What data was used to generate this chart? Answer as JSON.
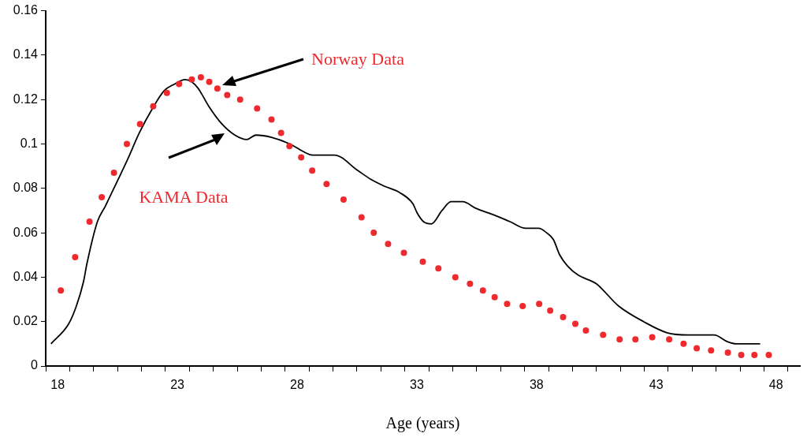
{
  "chart_data": {
    "type": "line",
    "xlabel": "Age (years)",
    "xlim": [
      17.5,
      49
    ],
    "ylim": [
      0,
      0.16
    ],
    "xticks": [
      {
        "value": 17.5,
        "label": null
      },
      18,
      {
        "value": 18.5,
        "label": null
      },
      {
        "value": 19.5,
        "label": null
      },
      {
        "value": 20.5,
        "label": null
      },
      {
        "value": 21.5,
        "label": null
      },
      {
        "value": 22.5,
        "label": null
      },
      23,
      {
        "value": 23.5,
        "label": null
      },
      {
        "value": 24.5,
        "label": null
      },
      {
        "value": 25.5,
        "label": null
      },
      {
        "value": 26.5,
        "label": null
      },
      {
        "value": 27.5,
        "label": null
      },
      28,
      {
        "value": 28.5,
        "label": null
      },
      {
        "value": 29.5,
        "label": null
      },
      {
        "value": 30.5,
        "label": null
      },
      {
        "value": 31.5,
        "label": null
      },
      {
        "value": 32.5,
        "label": null
      },
      33,
      {
        "value": 33.5,
        "label": null
      },
      {
        "value": 34.5,
        "label": null
      },
      {
        "value": 35.5,
        "label": null
      },
      {
        "value": 36.5,
        "label": null
      },
      {
        "value": 37.5,
        "label": null
      },
      38,
      {
        "value": 38.5,
        "label": null
      },
      {
        "value": 39.5,
        "label": null
      },
      {
        "value": 40.5,
        "label": null
      },
      {
        "value": 41.5,
        "label": null
      },
      {
        "value": 42.5,
        "label": null
      },
      43,
      {
        "value": 43.5,
        "label": null
      },
      {
        "value": 44.5,
        "label": null
      },
      {
        "value": 45.5,
        "label": null
      },
      {
        "value": 46.5,
        "label": null
      },
      {
        "value": 47.5,
        "label": null
      },
      48,
      {
        "value": 48.5,
        "label": null
      }
    ],
    "yticks": [
      0,
      0.02,
      0.04,
      0.06,
      0.08,
      0.1,
      0.12,
      0.14,
      0.16
    ],
    "grid": false,
    "legend": false,
    "series": [
      {
        "type": "scatter",
        "marker": "circle",
        "color": "#ee2a2f",
        "x": [
          18.13,
          18.73,
          19.33,
          19.84,
          20.35,
          20.89,
          21.44,
          21.99,
          22.56,
          23.07,
          23.6,
          23.98,
          24.33,
          24.67,
          25.08,
          25.62,
          26.33,
          26.93,
          27.33,
          27.68,
          28.17,
          28.63,
          29.23,
          29.94,
          30.69,
          31.2,
          31.8,
          32.46,
          33.25,
          33.9,
          34.61,
          35.22,
          35.76,
          36.25,
          36.77,
          37.42,
          38.11,
          38.57,
          39.11,
          39.62,
          40.06,
          40.78,
          41.47,
          42.13,
          42.83,
          43.54,
          44.14,
          44.69,
          45.29,
          45.99,
          46.55,
          47.1,
          47.7
        ],
        "values": [
          0.034,
          0.049,
          0.065,
          0.076,
          0.087,
          0.1,
          0.109,
          0.117,
          0.123,
          0.127,
          0.129,
          0.13,
          0.128,
          0.125,
          0.122,
          0.12,
          0.116,
          0.111,
          0.105,
          0.099,
          0.094,
          0.088,
          0.082,
          0.075,
          0.067,
          0.06,
          0.055,
          0.051,
          0.047,
          0.044,
          0.04,
          0.037,
          0.034,
          0.031,
          0.028,
          0.027,
          0.028,
          0.025,
          0.022,
          0.019,
          0.016,
          0.014,
          0.012,
          0.012,
          0.013,
          0.012,
          0.01,
          0.008,
          0.007,
          0.006,
          0.005,
          0.005,
          0.005
        ]
      },
      {
        "marker": "none",
        "line_style": "solid",
        "color": "#000000",
        "x": [
          17.72,
          18.46,
          18.78,
          19.08,
          19.22,
          19.66,
          19.99,
          20.48,
          20.92,
          21.41,
          21.96,
          22.45,
          22.89,
          23.32,
          23.6,
          23.87,
          24.31,
          24.86,
          25.4,
          25.9,
          26.28,
          26.93,
          27.7,
          28.36,
          28.63,
          29.56,
          30.54,
          31.09,
          31.64,
          32.3,
          32.84,
          33.01,
          33.28,
          33.61,
          34.05,
          34.43,
          34.92,
          35.47,
          36.23,
          36.89,
          37.55,
          38.09,
          38.42,
          38.7,
          38.97,
          39.3,
          39.73,
          40.5,
          41.43,
          42.47,
          43.45,
          44.33,
          45.42,
          45.97,
          46.35,
          47.34
        ],
        "values": [
          0.01,
          0.019,
          0.027,
          0.038,
          0.046,
          0.065,
          0.072,
          0.083,
          0.093,
          0.105,
          0.116,
          0.124,
          0.127,
          0.129,
          0.128,
          0.125,
          0.117,
          0.109,
          0.104,
          0.102,
          0.104,
          0.103,
          0.1,
          0.096,
          0.095,
          0.095,
          0.088,
          0.084,
          0.081,
          0.078,
          0.073,
          0.069,
          0.065,
          0.064,
          0.07,
          0.074,
          0.074,
          0.071,
          0.068,
          0.065,
          0.062,
          0.062,
          0.06,
          0.057,
          0.05,
          0.045,
          0.041,
          0.037,
          0.027,
          0.02,
          0.015,
          0.014,
          0.014,
          0.011,
          0.01,
          0.01
        ]
      }
    ],
    "annotations": [
      "Norway Data",
      "KAMA Data"
    ]
  }
}
